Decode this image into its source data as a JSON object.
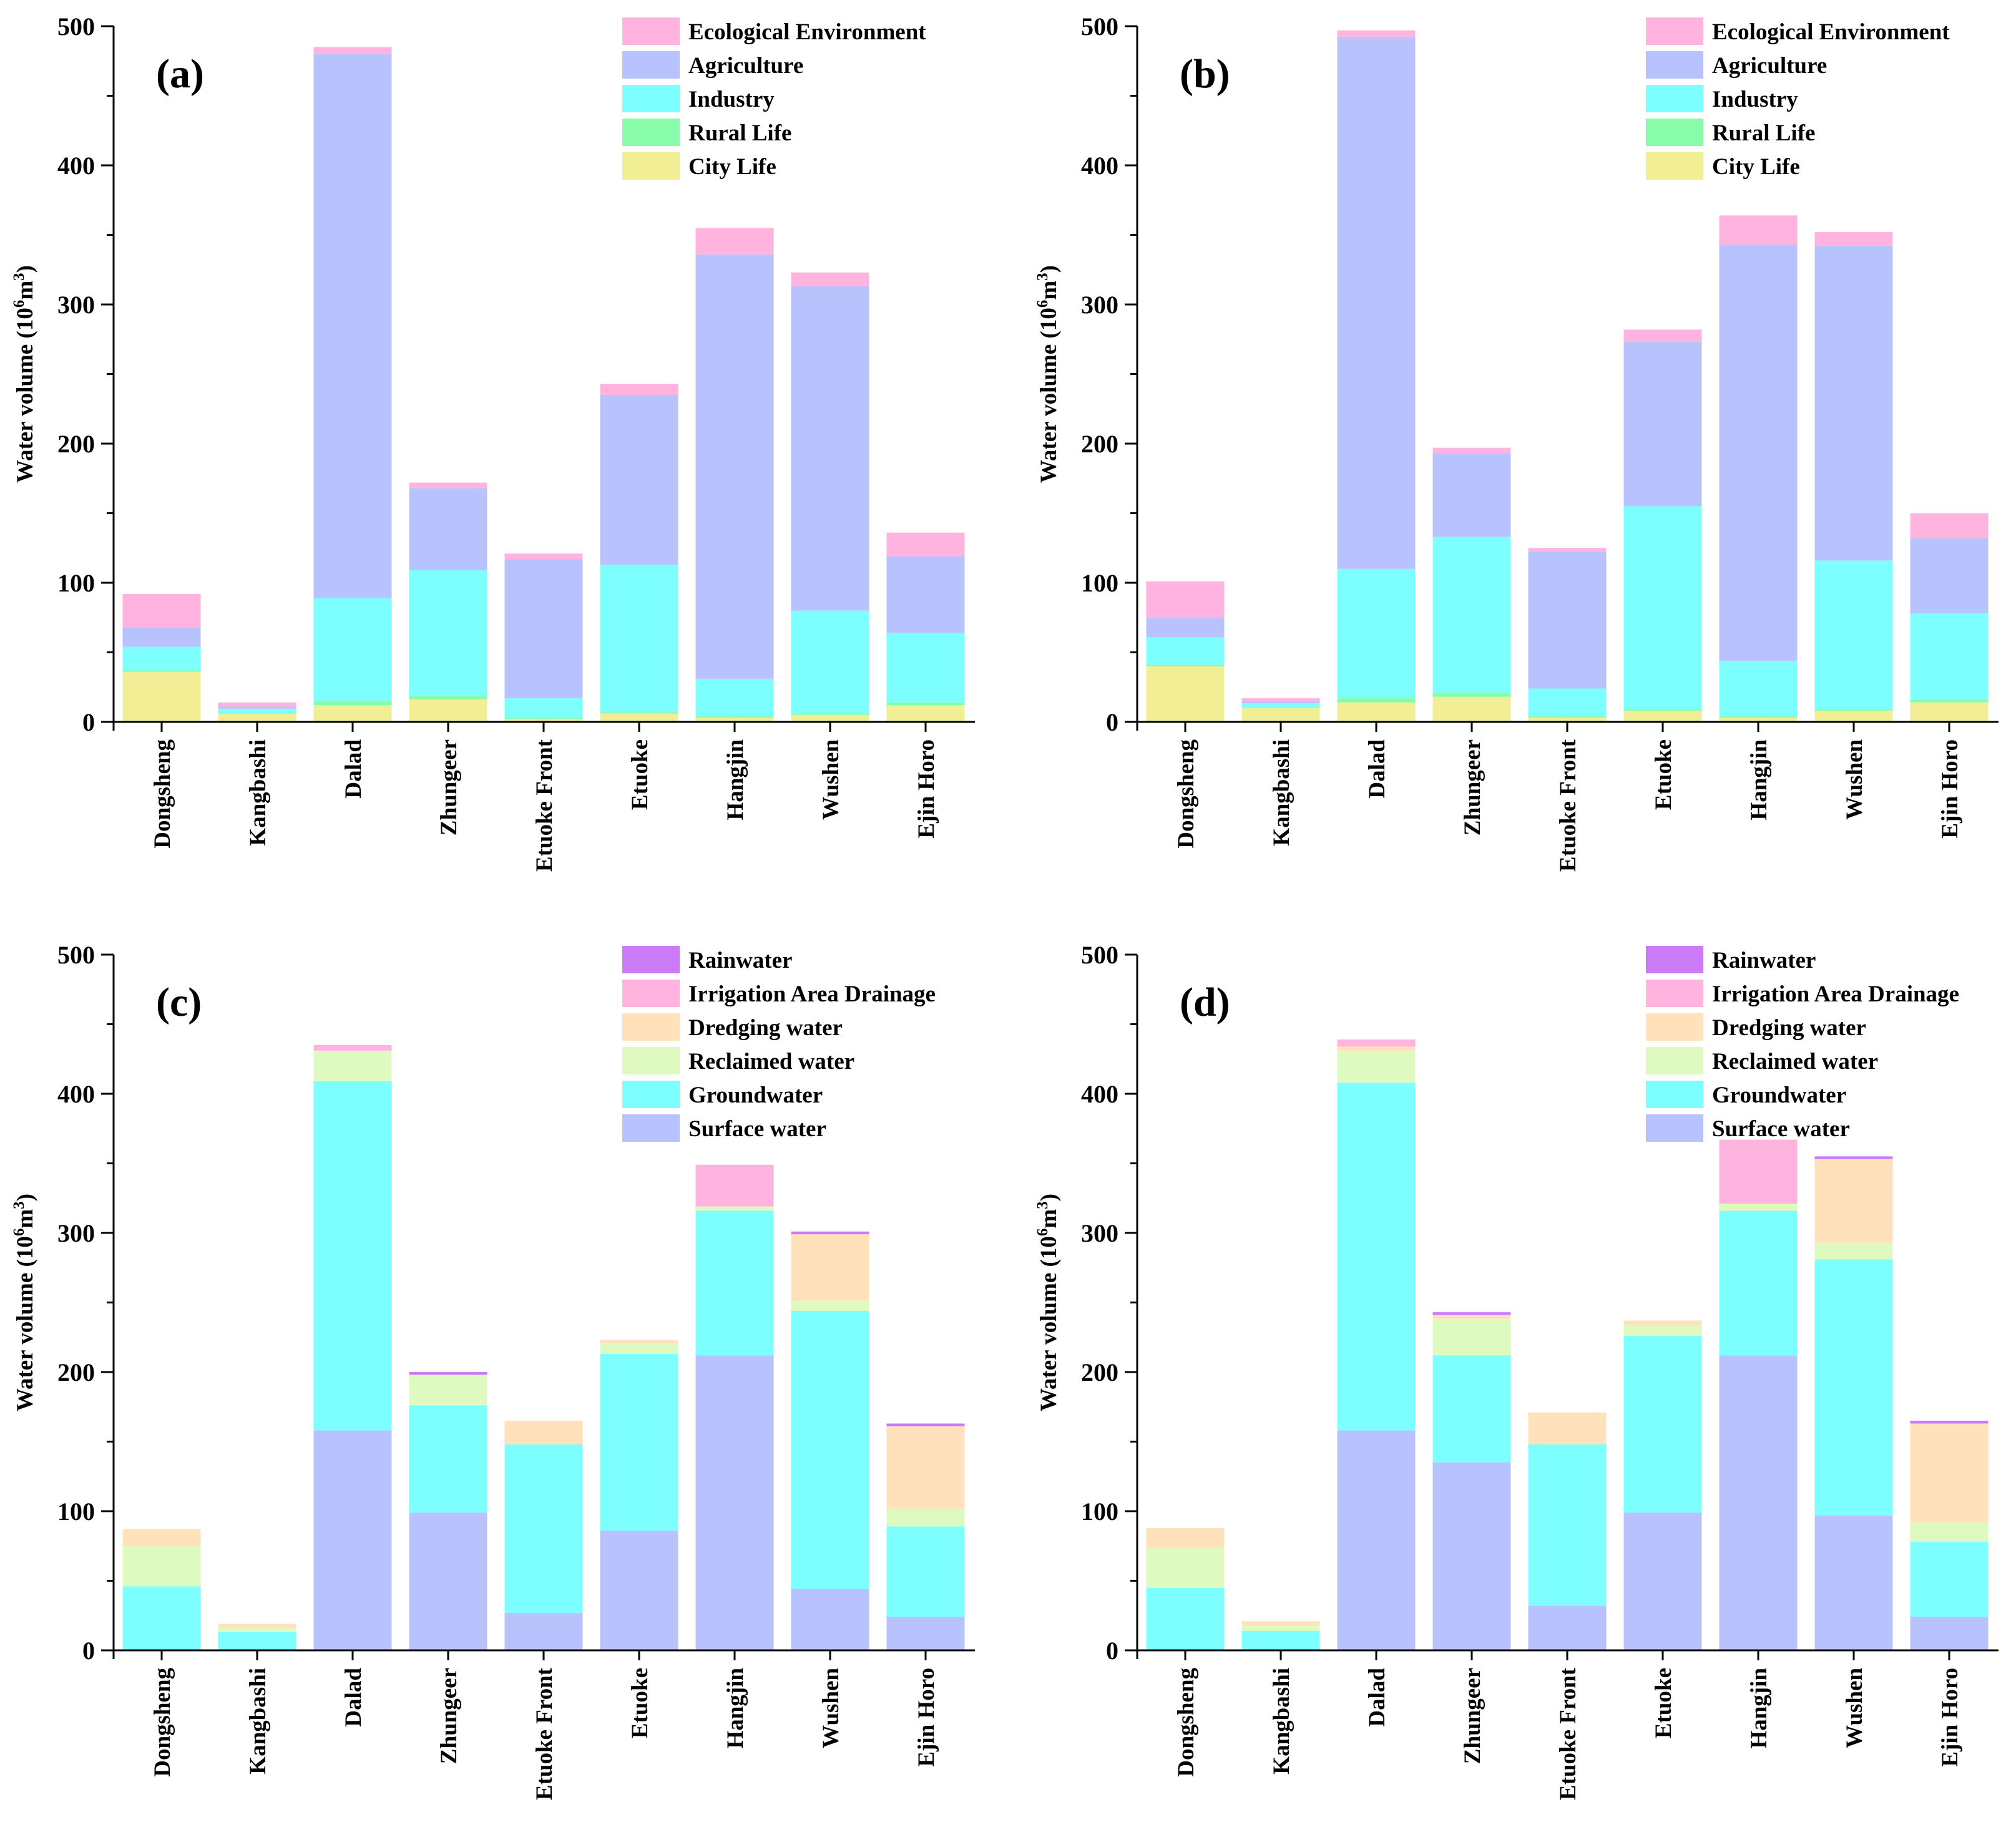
{
  "figure": {
    "ylabel_main": "Water volume (10",
    "ylabel_sup": "6",
    "ylabel_mid": "m",
    "ylabel_sup2": "3",
    "ylabel_end": ")"
  },
  "legend_sets": {
    "use": {
      "entries": [
        "Ecological Environment",
        "Agriculture",
        "Industry",
        "Rural Life",
        "City Life"
      ],
      "colors": [
        "#FFB3DF",
        "#B8C2FC",
        "#7DFFFF",
        "#88FCAA",
        "#F2EE96"
      ]
    },
    "source": {
      "entries": [
        "Rainwater",
        "Irrigation Area Drainage",
        "Dredging water",
        "Reclaimed water",
        "Groundwater",
        "Surface water"
      ],
      "colors": [
        "#CC7BF8",
        "#FFB3DF",
        "#FFE1BB",
        "#DFFAC0",
        "#7DFFFF",
        "#B8C2FC"
      ]
    }
  },
  "chart_data": [
    {
      "panel": "(a)",
      "type": "bar",
      "stacked": true,
      "legend": "use",
      "categories": [
        "Dongsheng",
        "Kangbashi",
        "Dalad",
        "Zhungeer",
        "Etuoke Front",
        "Etuoke",
        "Hangjin",
        "Wushen",
        "Ejin Horo"
      ],
      "ylim": [
        0,
        500
      ],
      "yticks": [
        0,
        100,
        200,
        300,
        400,
        500
      ],
      "ylabel": "Water volume (10^6 m^3)",
      "series": [
        {
          "name": "City Life",
          "values": [
            36,
            6,
            12,
            16,
            2,
            6,
            3,
            5,
            12
          ]
        },
        {
          "name": "Rural Life",
          "values": [
            1,
            0.5,
            3,
            3,
            1,
            1,
            1,
            1,
            2
          ]
        },
        {
          "name": "Industry",
          "values": [
            17,
            3,
            74,
            90,
            14,
            106,
            27,
            74,
            50
          ]
        },
        {
          "name": "Agriculture",
          "values": [
            14,
            1.5,
            391,
            59,
            100,
            122,
            305,
            233,
            55
          ]
        },
        {
          "name": "Ecological Environment",
          "values": [
            24,
            3,
            5,
            4,
            4,
            8,
            19,
            10,
            17
          ]
        }
      ]
    },
    {
      "panel": "(b)",
      "type": "bar",
      "stacked": true,
      "legend": "use",
      "categories": [
        "Dongsheng",
        "Kangbashi",
        "Dalad",
        "Zhungeer",
        "Etuoke Front",
        "Etuoke",
        "Hangjin",
        "Wushen",
        "Ejin Horo"
      ],
      "ylim": [
        0,
        500
      ],
      "yticks": [
        0,
        100,
        200,
        300,
        400,
        500
      ],
      "ylabel": "Water volume (10^6 m^3)",
      "series": [
        {
          "name": "City Life",
          "values": [
            40,
            10,
            14,
            18,
            3,
            8,
            3,
            8,
            14
          ]
        },
        {
          "name": "Rural Life",
          "values": [
            1,
            0.5,
            3,
            3,
            1,
            1,
            1,
            1,
            2
          ]
        },
        {
          "name": "Industry",
          "values": [
            20,
            3,
            93,
            112,
            20,
            146,
            40,
            107,
            62
          ]
        },
        {
          "name": "Agriculture",
          "values": [
            14,
            1.5,
            382,
            60,
            98,
            118,
            299,
            226,
            54
          ]
        },
        {
          "name": "Ecological Environment",
          "values": [
            26,
            2,
            5,
            4,
            3,
            9,
            21,
            10,
            18
          ]
        }
      ]
    },
    {
      "panel": "(c)",
      "type": "bar",
      "stacked": true,
      "legend": "source",
      "categories": [
        "Dongsheng",
        "Kangbashi",
        "Dalad",
        "Zhungeer",
        "Etuoke Front",
        "Etuoke",
        "Hangjin",
        "Wushen",
        "Ejin Horo"
      ],
      "ylim": [
        0,
        500
      ],
      "yticks": [
        0,
        100,
        200,
        300,
        400,
        500
      ],
      "ylabel": "Water volume (10^6 m^3)",
      "series": [
        {
          "name": "Surface water",
          "values": [
            0,
            0,
            158,
            99,
            27,
            86,
            212,
            44,
            24
          ]
        },
        {
          "name": "Groundwater",
          "values": [
            46,
            13,
            251,
            77,
            121,
            127,
            104,
            200,
            65
          ]
        },
        {
          "name": "Reclaimed water",
          "values": [
            29,
            3,
            22,
            22,
            0,
            8,
            3,
            7,
            13
          ]
        },
        {
          "name": "Dredging water",
          "values": [
            12,
            3,
            0,
            0,
            17,
            2,
            0,
            48,
            59
          ]
        },
        {
          "name": "Irrigation Area Drainage",
          "values": [
            0,
            0,
            4,
            0,
            0,
            0,
            30,
            0,
            0
          ]
        },
        {
          "name": "Rainwater",
          "values": [
            0,
            0,
            0,
            2,
            0,
            0,
            0,
            2,
            2
          ]
        }
      ]
    },
    {
      "panel": "(d)",
      "type": "bar",
      "stacked": true,
      "legend": "source",
      "categories": [
        "Dongsheng",
        "Kangbashi",
        "Dalad",
        "Zhungeer",
        "Etuoke Front",
        "Etuoke",
        "Hangjin",
        "Wushen",
        "Ejin Horo"
      ],
      "ylim": [
        0,
        500
      ],
      "yticks": [
        0,
        100,
        200,
        300,
        400,
        500
      ],
      "ylabel": "Water volume (10^6 m^3)",
      "series": [
        {
          "name": "Surface water",
          "values": [
            0,
            0,
            158,
            135,
            32,
            99,
            212,
            97,
            24
          ]
        },
        {
          "name": "Groundwater",
          "values": [
            45,
            14,
            250,
            77,
            116,
            127,
            104,
            184,
            54
          ]
        },
        {
          "name": "Reclaimed water",
          "values": [
            29,
            4,
            23,
            26,
            0,
            8,
            5,
            12,
            14
          ]
        },
        {
          "name": "Dredging water",
          "values": [
            14,
            3,
            3,
            3,
            23,
            3,
            0,
            60,
            71
          ]
        },
        {
          "name": "Irrigation Area Drainage",
          "values": [
            0,
            0,
            5,
            0,
            0,
            0,
            46,
            0,
            0
          ]
        },
        {
          "name": "Rainwater",
          "values": [
            0,
            0,
            0,
            2,
            0,
            0,
            0,
            2,
            2
          ]
        }
      ]
    }
  ]
}
